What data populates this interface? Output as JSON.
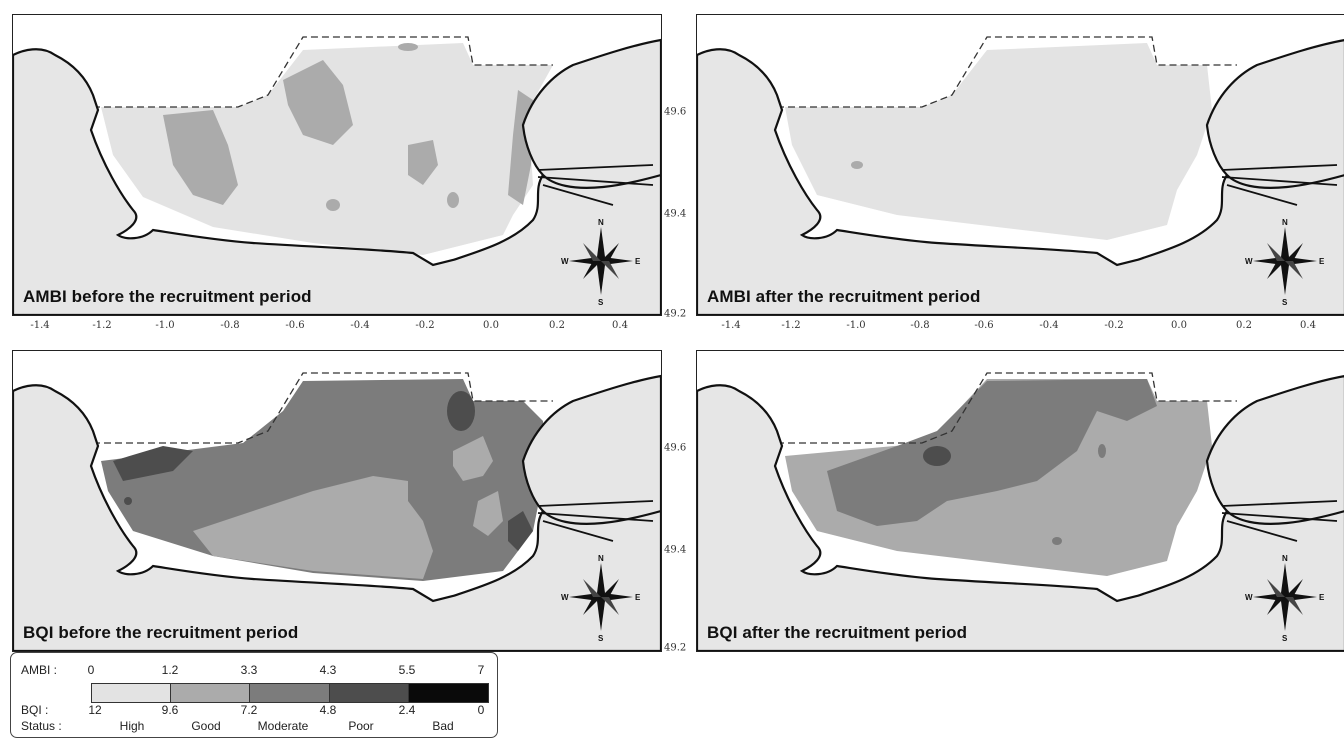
{
  "panels": [
    {
      "id": "ambi-before",
      "title": "AMBI before the recruitment period"
    },
    {
      "id": "ambi-after",
      "title": "AMBI after the recruitment period"
    },
    {
      "id": "bqi-before",
      "title": "BQI before the recruitment period"
    },
    {
      "id": "bqi-after",
      "title": "BQI after the recruitment period"
    }
  ],
  "compass": {
    "n": "N",
    "s": "S",
    "e": "E",
    "w": "W"
  },
  "longitude_ticks": [
    "-1.4",
    "-1.2",
    "-1.0",
    "-0.8",
    "-0.6",
    "-0.4",
    "-0.2",
    "0.0",
    "0.2",
    "0.4"
  ],
  "latitude_ticks": [
    "49.6",
    "49.4",
    "49.2"
  ],
  "legend": {
    "ambi_label": "AMBI :",
    "ambi_values": [
      "0",
      "1.2",
      "3.3",
      "4.3",
      "5.5",
      "7"
    ],
    "bqi_label": "BQI :",
    "bqi_values": [
      "12",
      "9.6",
      "7.2",
      "4.8",
      "2.4",
      "0"
    ],
    "status_label": "Status :",
    "statuses": [
      "High",
      "Good",
      "Moderate",
      "Poor",
      "Bad"
    ],
    "colors": [
      "#e3e3e3",
      "#ababab",
      "#7c7c7c",
      "#4d4d4d",
      "#0a0a0a"
    ]
  }
}
